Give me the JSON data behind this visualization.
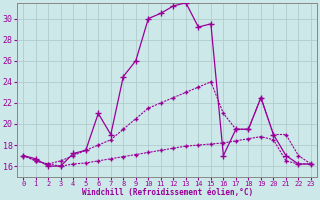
{
  "background_color": "#cde8e8",
  "grid_color": "#b0cccc",
  "line_color": "#990099",
  "xlabel": "Windchill (Refroidissement éolien,°C)",
  "xlim": [
    -0.5,
    23.5
  ],
  "ylim": [
    15.0,
    31.5
  ],
  "yticks": [
    16,
    18,
    20,
    22,
    24,
    26,
    28,
    30
  ],
  "xticks": [
    0,
    1,
    2,
    3,
    4,
    5,
    6,
    7,
    8,
    9,
    10,
    11,
    12,
    13,
    14,
    15,
    16,
    17,
    18,
    19,
    20,
    21,
    22,
    23
  ],
  "series1_x": [
    0,
    1,
    2,
    3,
    4,
    5,
    6,
    7,
    8,
    9,
    10,
    11,
    12,
    13,
    14,
    15,
    16,
    17,
    18,
    19,
    20,
    21,
    22,
    23
  ],
  "series1_y": [
    17.0,
    16.7,
    16.0,
    16.0,
    17.2,
    17.5,
    21.0,
    19.0,
    24.5,
    26.0,
    30.0,
    30.5,
    31.2,
    31.5,
    29.2,
    29.5,
    17.0,
    19.5,
    19.5,
    22.5,
    19.0,
    17.0,
    16.2,
    16.2
  ],
  "series2_x": [
    0,
    1,
    2,
    3,
    4,
    5,
    6,
    7,
    8,
    9,
    10,
    11,
    12,
    13,
    14,
    15,
    16,
    17,
    18,
    19,
    20,
    21,
    22,
    23
  ],
  "series2_y": [
    17.0,
    16.5,
    16.2,
    16.5,
    17.0,
    17.5,
    18.0,
    18.5,
    19.5,
    20.5,
    21.5,
    22.0,
    22.5,
    23.0,
    23.5,
    24.0,
    21.0,
    19.5,
    19.5,
    22.5,
    19.0,
    19.0,
    17.0,
    16.2
  ],
  "series3_x": [
    0,
    1,
    2,
    3,
    4,
    5,
    6,
    7,
    8,
    9,
    10,
    11,
    12,
    13,
    14,
    15,
    16,
    17,
    18,
    19,
    20,
    21,
    22,
    23
  ],
  "series3_y": [
    17.0,
    16.5,
    16.2,
    16.0,
    16.2,
    16.3,
    16.5,
    16.7,
    16.9,
    17.1,
    17.3,
    17.5,
    17.7,
    17.9,
    18.0,
    18.1,
    18.2,
    18.4,
    18.6,
    18.8,
    18.5,
    16.5,
    16.2,
    16.2
  ]
}
